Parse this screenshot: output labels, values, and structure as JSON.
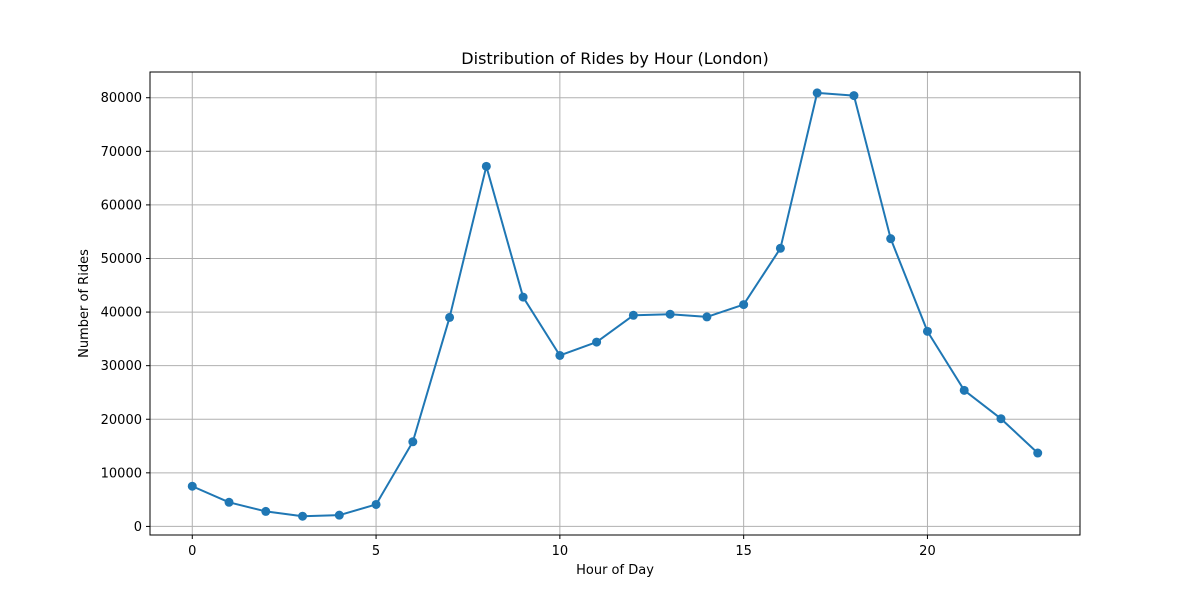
{
  "chart_data": {
    "type": "line",
    "title": "Distribution of Rides by Hour (London)",
    "xlabel": "Hour of Day",
    "ylabel": "Number of Rides",
    "xlim": [
      -1.15,
      24.15
    ],
    "ylim": [
      -1600,
      84800
    ],
    "x_ticks": [
      0,
      5,
      10,
      15,
      20
    ],
    "y_ticks": [
      0,
      10000,
      20000,
      30000,
      40000,
      50000,
      60000,
      70000,
      80000
    ],
    "grid": true,
    "series": [
      {
        "color": "#1f77b4",
        "marker": "circle",
        "x": [
          0,
          1,
          2,
          3,
          4,
          5,
          6,
          7,
          8,
          9,
          10,
          11,
          12,
          13,
          14,
          15,
          16,
          17,
          18,
          19,
          20,
          21,
          22,
          23
        ],
        "values": [
          7500,
          4500,
          2800,
          1900,
          2100,
          4100,
          15800,
          39000,
          67200,
          42800,
          31900,
          34400,
          39400,
          39600,
          39100,
          41400,
          51900,
          80900,
          80400,
          53700,
          36400,
          25400,
          20100,
          13700
        ]
      }
    ]
  }
}
